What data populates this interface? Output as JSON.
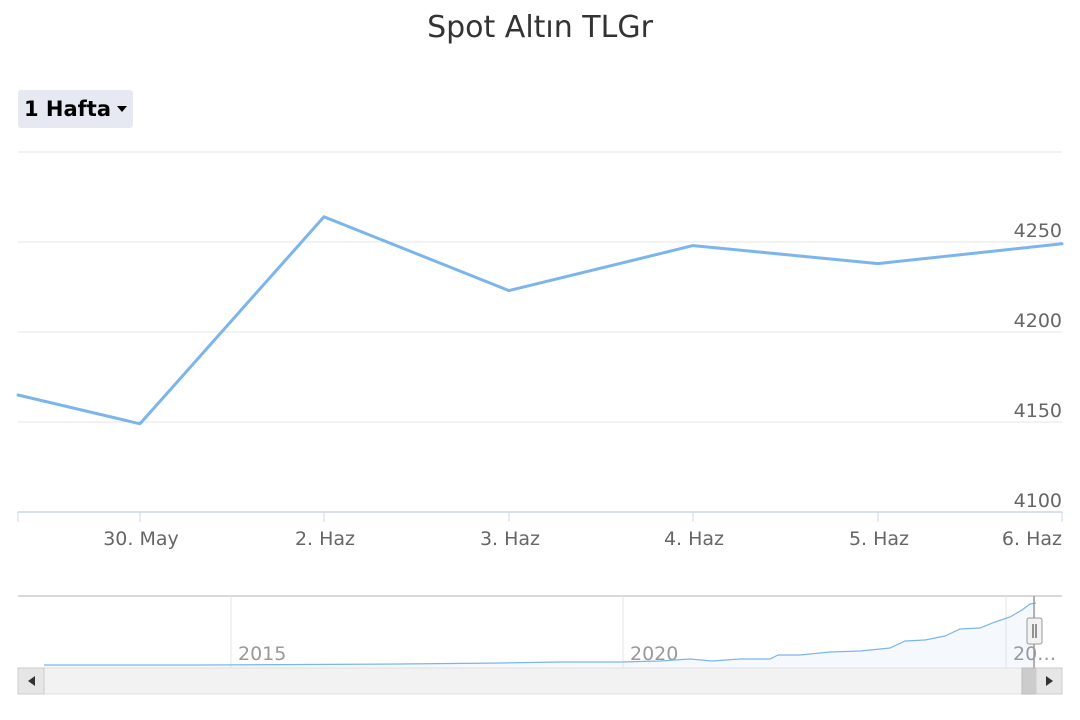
{
  "title": "Spot Altın TLGr",
  "range_selector": {
    "label": "1 Hafta"
  },
  "chart_data": {
    "type": "line",
    "title": "Spot Altın TLGr",
    "x_tick_labels": [
      "30. May",
      "2. Haz",
      "3. Haz",
      "4. Haz",
      "5. Haz",
      "6. Haz"
    ],
    "series": [
      {
        "points": [
          {
            "x": "2022-05-27",
            "y": 4165
          },
          {
            "x": "2022-05-30",
            "y": 4149
          },
          {
            "x": "2022-06-02",
            "y": 4264
          },
          {
            "x": "2022-06-03",
            "y": 4223
          },
          {
            "x": "2022-06-04",
            "y": 4248
          },
          {
            "x": "2022-06-05",
            "y": 4238
          },
          {
            "x": "2022-06-06",
            "y": 4249
          }
        ],
        "color": "#7cb5ec"
      }
    ],
    "y_ticks": [
      4100,
      4150,
      4200,
      4250
    ],
    "ylim": [
      4100,
      4300
    ],
    "grid": true,
    "y_axis_side": "right",
    "navigator": {
      "x_tick_labels": [
        "2015",
        "2020",
        "20…"
      ],
      "series_color": "#7cb5ec"
    }
  },
  "colors": {
    "line": "#7cb5ec",
    "grid": "#e6e6e6",
    "axis": "#ccd6eb",
    "text": "#333333",
    "tick_text": "#666666",
    "button_bg": "#e6e9f2"
  }
}
